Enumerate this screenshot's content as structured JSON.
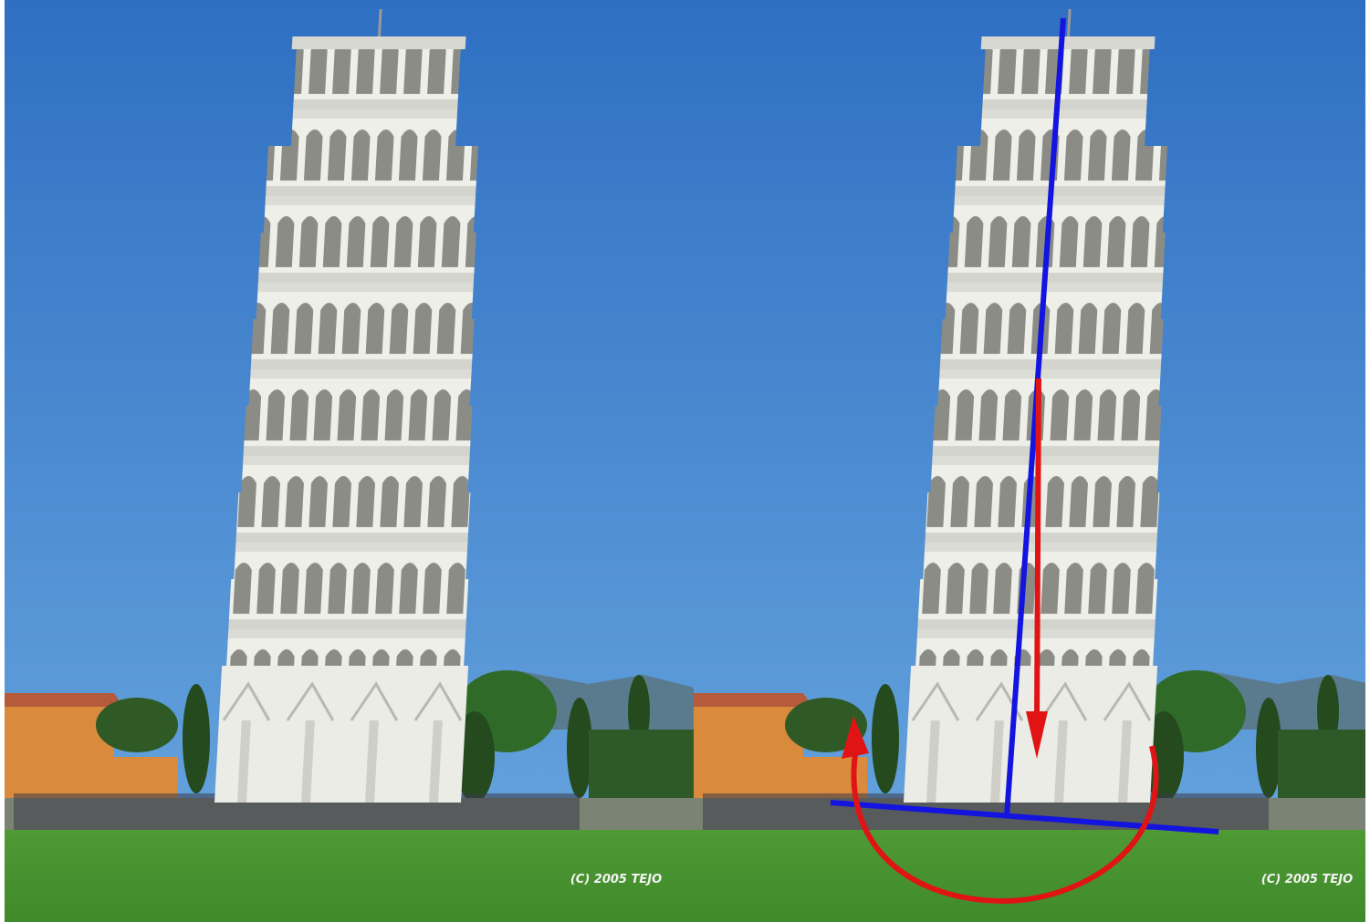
{
  "panels": [
    {
      "credit": "(C) 2005 TEJO"
    },
    {
      "credit": "(C) 2005 TEJO"
    }
  ]
}
